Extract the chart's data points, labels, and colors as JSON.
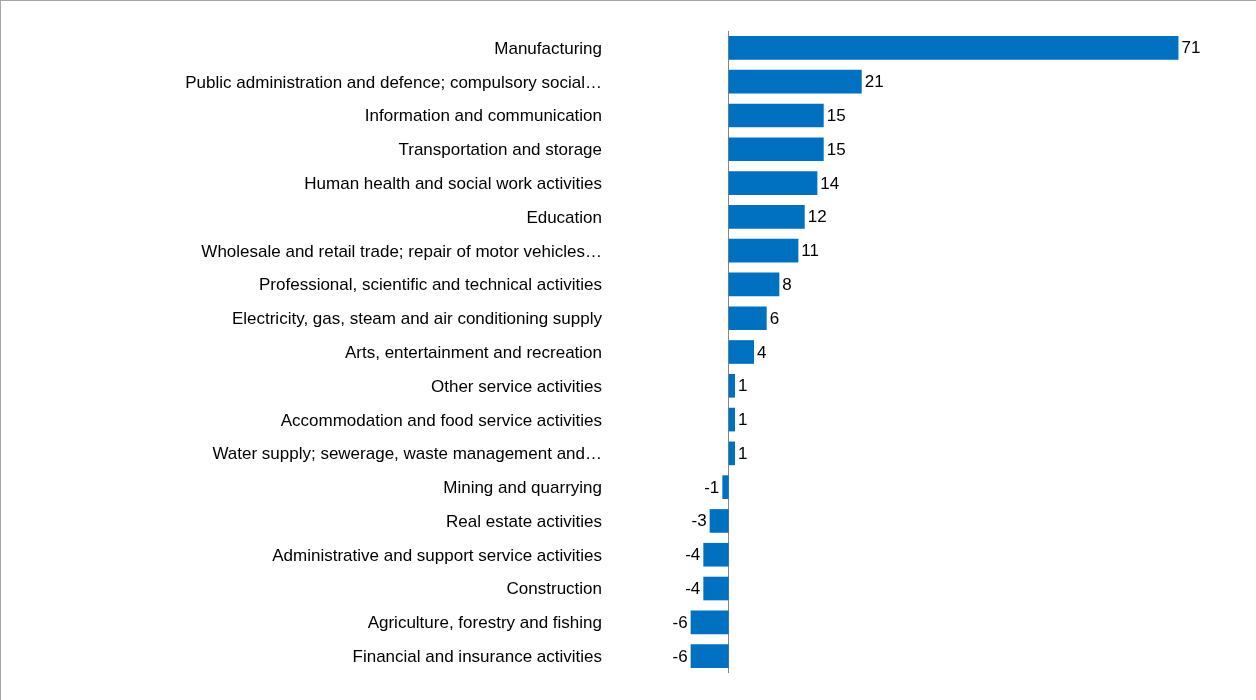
{
  "chart_data": {
    "type": "bar",
    "orientation": "horizontal",
    "data_labels": true,
    "grid": false,
    "legend": false,
    "categories": [
      "Manufacturing",
      "Public administration and defence; compulsory social…",
      "Information and communication",
      "Transportation and storage",
      "Human health and social work activities",
      "Education",
      "Wholesale and retail trade; repair of motor vehicles…",
      "Professional, scientific and technical activities",
      "Electricity, gas, steam and air conditioning supply",
      "Arts, entertainment and recreation",
      "Other service activities",
      "Accommodation and food service activities",
      "Water supply; sewerage, waste management and…",
      "Mining and quarrying",
      "Real estate activities",
      "Administrative and support service activities",
      "Construction",
      "Agriculture, forestry and fishing",
      "Financial and insurance activities"
    ],
    "values": [
      71,
      21,
      15,
      15,
      14,
      12,
      11,
      8,
      6,
      4,
      1,
      1,
      1,
      -1,
      -3,
      -4,
      -4,
      -6,
      -6
    ],
    "color": "#0070c0"
  }
}
